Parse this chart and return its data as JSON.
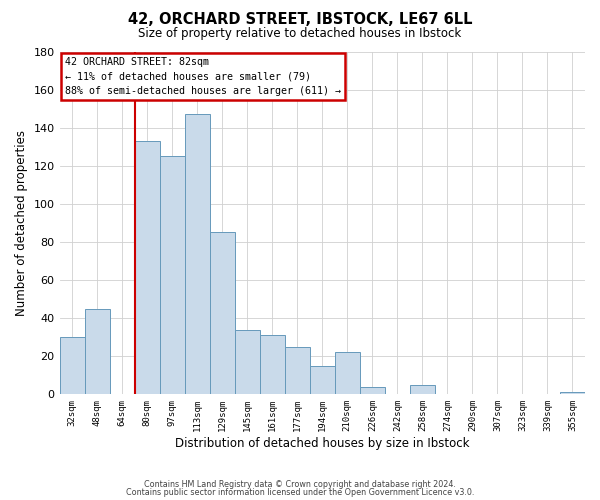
{
  "title": "42, ORCHARD STREET, IBSTOCK, LE67 6LL",
  "subtitle": "Size of property relative to detached houses in Ibstock",
  "xlabel": "Distribution of detached houses by size in Ibstock",
  "ylabel": "Number of detached properties",
  "bar_labels": [
    "32sqm",
    "48sqm",
    "64sqm",
    "80sqm",
    "97sqm",
    "113sqm",
    "129sqm",
    "145sqm",
    "161sqm",
    "177sqm",
    "194sqm",
    "210sqm",
    "226sqm",
    "242sqm",
    "258sqm",
    "274sqm",
    "290sqm",
    "307sqm",
    "323sqm",
    "339sqm",
    "355sqm"
  ],
  "bar_values": [
    30,
    45,
    0,
    133,
    125,
    147,
    85,
    34,
    31,
    25,
    15,
    22,
    4,
    0,
    5,
    0,
    0,
    0,
    0,
    0,
    1
  ],
  "bar_color": "#c9daea",
  "bar_edge_color": "#6699bb",
  "ylim": [
    0,
    180
  ],
  "yticks": [
    0,
    20,
    40,
    60,
    80,
    100,
    120,
    140,
    160,
    180
  ],
  "red_line_index": 3,
  "property_line_color": "#cc0000",
  "annotation_title": "42 ORCHARD STREET: 82sqm",
  "annotation_line1": "← 11% of detached houses are smaller (79)",
  "annotation_line2": "88% of semi-detached houses are larger (611) →",
  "annotation_box_color": "#cc0000",
  "footer1": "Contains HM Land Registry data © Crown copyright and database right 2024.",
  "footer2": "Contains public sector information licensed under the Open Government Licence v3.0.",
  "background_color": "#ffffff",
  "grid_color": "#d0d0d0"
}
